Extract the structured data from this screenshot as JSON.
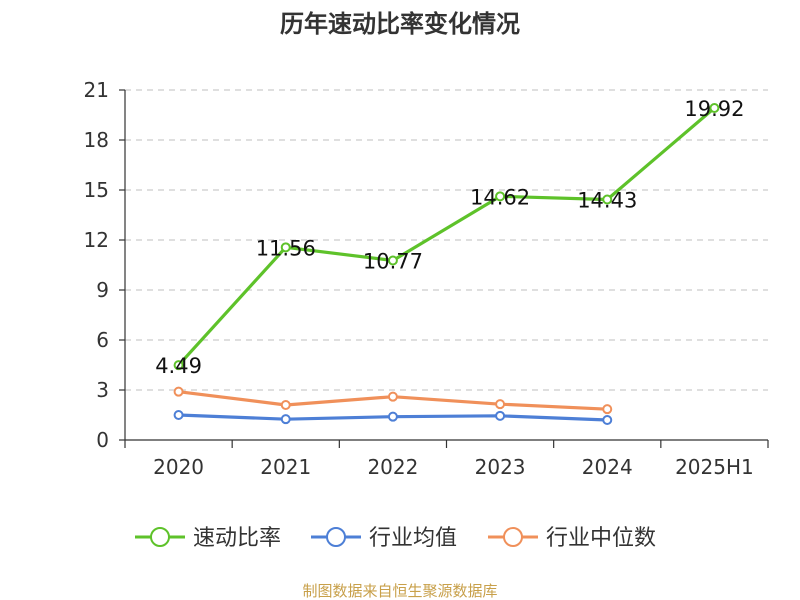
{
  "chart_data": {
    "type": "line",
    "title": "历年速动比率变化情况",
    "categories": [
      "2020",
      "2021",
      "2022",
      "2023",
      "2024",
      "2025H1"
    ],
    "ylim": [
      0,
      21
    ],
    "yticks": [
      0,
      3,
      6,
      9,
      12,
      15,
      18,
      21
    ],
    "grid": true,
    "legend_position": "bottom",
    "series": [
      {
        "name": "速动比率",
        "color": "#5ec22a",
        "values": [
          4.49,
          11.56,
          10.77,
          14.62,
          14.43,
          19.92
        ],
        "labels": [
          "4.49",
          "11.56",
          "10.77",
          "14.62",
          "14.43",
          "19.92"
        ]
      },
      {
        "name": "行业均值",
        "color": "#4d7fd6",
        "values": [
          1.5,
          1.25,
          1.4,
          1.45,
          1.2,
          null
        ]
      },
      {
        "name": "行业中位数",
        "color": "#f0905a",
        "values": [
          2.9,
          2.1,
          2.6,
          2.15,
          1.85,
          null
        ]
      }
    ],
    "source": "制图数据来自恒生聚源数据库"
  }
}
